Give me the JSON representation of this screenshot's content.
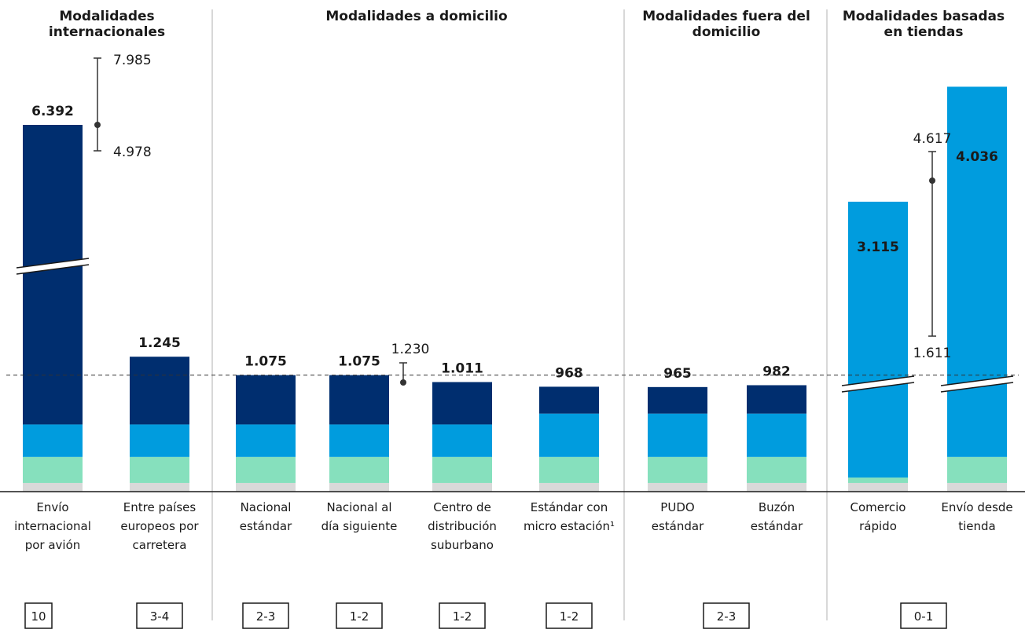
{
  "chart_data": {
    "type": "bar",
    "stacked": true,
    "colors": {
      "segment_1": "#d9d9d9",
      "segment_2": "#86e0bd",
      "segment_3": "#009cde",
      "segment_4": "#002e6f",
      "divider": "#cccccc",
      "reference_line": "#333333"
    },
    "groups": [
      {
        "title": "Modalidades internacionales",
        "title_lines": [
          "Modalidades",
          "internacionales"
        ],
        "boxes": [
          "10",
          "3-4"
        ]
      },
      {
        "title": "Modalidades a domicilio",
        "title_lines": [
          "Modalidades a domicilio"
        ],
        "boxes": [
          "2-3",
          "1-2",
          "1-2",
          "1-2"
        ]
      },
      {
        "title": "Modalidades fuera del domicilio",
        "title_lines": [
          "Modalidades fuera del",
          "domicilio"
        ],
        "boxes": [
          "2-3"
        ]
      },
      {
        "title": "Modalidades basadas en tiendas",
        "title_lines": [
          "Modalidades basadas",
          "en tiendas"
        ],
        "boxes": [
          "0-1"
        ]
      }
    ],
    "categories": [
      {
        "label": [
          "Envío",
          "internacional",
          "por avión"
        ],
        "total": "6.392",
        "value": 6392,
        "segments": [
          80,
          240,
          300,
          5772
        ],
        "axis_break": true,
        "range": {
          "high": "7.985",
          "low": "4.978"
        }
      },
      {
        "label": [
          "Entre países",
          "europeos por",
          "carretera"
        ],
        "total": "1.245",
        "value": 1245,
        "segments": [
          80,
          240,
          300,
          625
        ]
      },
      {
        "label": [
          "Nacional",
          "estándar"
        ],
        "total": "1.075",
        "value": 1075,
        "segments": [
          80,
          240,
          300,
          455
        ]
      },
      {
        "label": [
          "Nacional al",
          "día siguiente"
        ],
        "total": "1.075",
        "value": 1075,
        "segments": [
          80,
          240,
          300,
          455
        ],
        "range": {
          "high": "1.230"
        }
      },
      {
        "label": [
          "Centro de",
          "distribución",
          "suburbano"
        ],
        "total": "1.011",
        "value": 1011,
        "segments": [
          80,
          240,
          300,
          391
        ]
      },
      {
        "label": [
          "Estándar con",
          "micro estación¹"
        ],
        "total": "968",
        "value": 968,
        "segments": [
          80,
          240,
          400,
          248
        ]
      },
      {
        "label": [
          "PUDO",
          "estándar"
        ],
        "total": "965",
        "value": 965,
        "segments": [
          80,
          240,
          400,
          245
        ]
      },
      {
        "label": [
          "Buzón",
          "estándar"
        ],
        "total": "982",
        "value": 982,
        "segments": [
          80,
          240,
          400,
          262
        ]
      },
      {
        "label": [
          "Comercio",
          "rápido"
        ],
        "total": "3.115",
        "value": 3115,
        "segments": [
          80,
          50,
          2545,
          440
        ],
        "axis_break": true,
        "range": {
          "low": "1.611"
        }
      },
      {
        "label": [
          "Envío desde",
          "tienda"
        ],
        "total": "4.036",
        "value": 4036,
        "segments": [
          80,
          240,
          3416,
          300
        ],
        "axis_break": true,
        "range": {
          "high": "4.617"
        }
      }
    ],
    "reference_line": 1075
  }
}
